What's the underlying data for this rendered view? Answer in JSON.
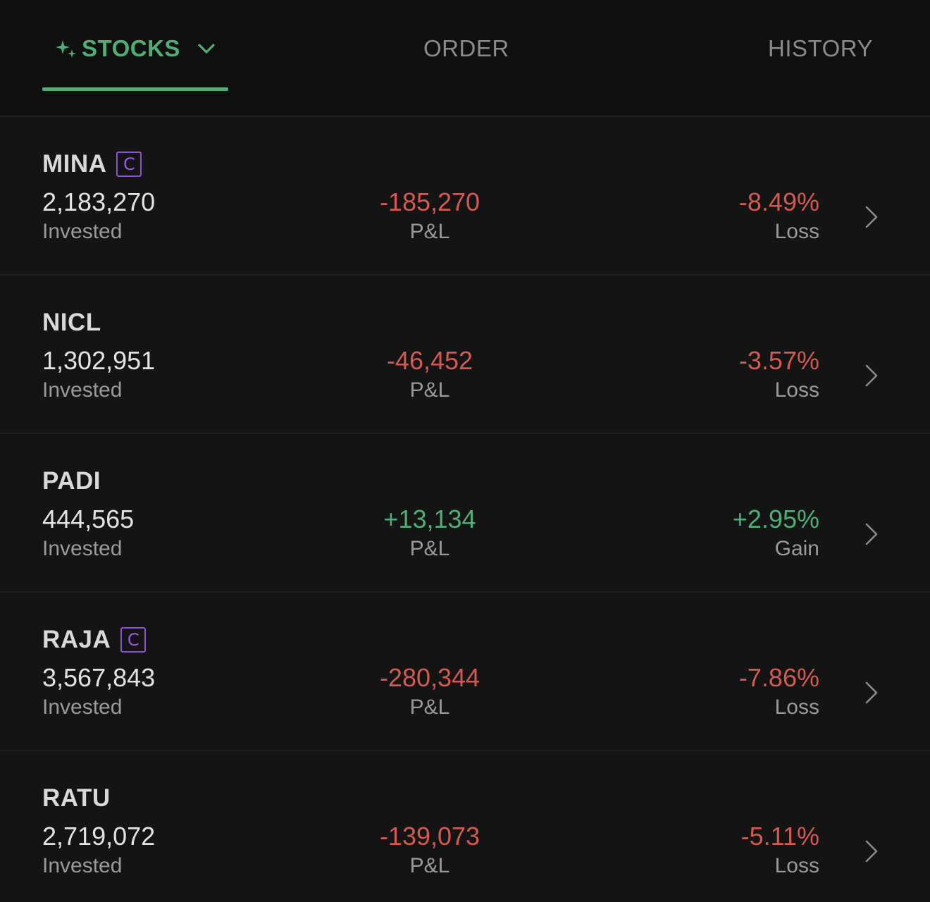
{
  "tabs": {
    "stocks": "STOCKS",
    "order": "ORDER",
    "history": "HISTORY"
  },
  "colors": {
    "accent": "#4fae76",
    "loss": "#d25a52",
    "badge": "#8d4fd6",
    "background": "#141414"
  },
  "icons": {
    "tab_stocks_leading": "sparkle-icon",
    "tab_stocks_trailing": "chevron-down-icon",
    "row_trailing": "chevron-right-icon"
  },
  "rows": [
    {
      "ticker": "MINA",
      "badge": "C",
      "invested": "2,183,270",
      "invested_label": "Invested",
      "pnl": "-185,270",
      "pnl_label": "P&L",
      "pct": "-8.49%",
      "pct_label": "Loss",
      "trend": "neg"
    },
    {
      "ticker": "NICL",
      "badge": "",
      "invested": "1,302,951",
      "invested_label": "Invested",
      "pnl": "-46,452",
      "pnl_label": "P&L",
      "pct": "-3.57%",
      "pct_label": "Loss",
      "trend": "neg"
    },
    {
      "ticker": "PADI",
      "badge": "",
      "invested": "444,565",
      "invested_label": "Invested",
      "pnl": "+13,134",
      "pnl_label": "P&L",
      "pct": "+2.95%",
      "pct_label": "Gain",
      "trend": "pos"
    },
    {
      "ticker": "RAJA",
      "badge": "C",
      "invested": "3,567,843",
      "invested_label": "Invested",
      "pnl": "-280,344",
      "pnl_label": "P&L",
      "pct": "-7.86%",
      "pct_label": "Loss",
      "trend": "neg"
    },
    {
      "ticker": "RATU",
      "badge": "",
      "invested": "2,719,072",
      "invested_label": "Invested",
      "pnl": "-139,073",
      "pnl_label": "P&L",
      "pct": "-5.11%",
      "pct_label": "Loss",
      "trend": "neg"
    }
  ]
}
